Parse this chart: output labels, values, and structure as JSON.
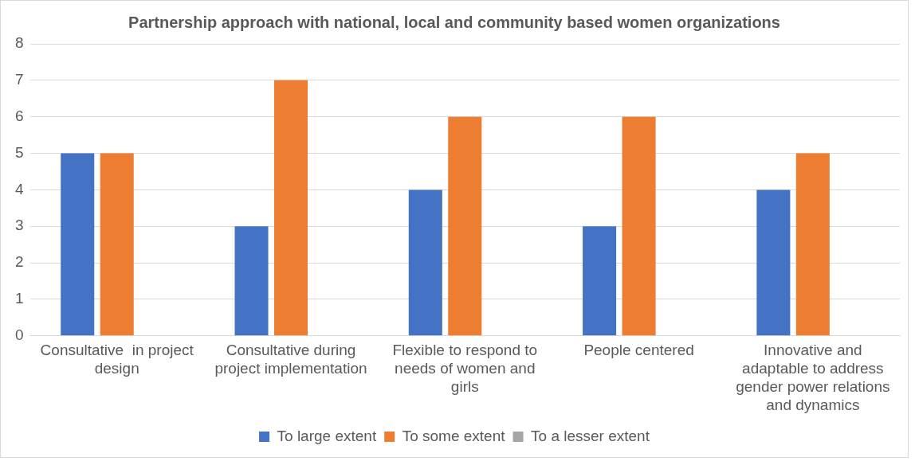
{
  "chart_data": {
    "type": "bar",
    "title": "Partnership approach with national, local and community based women organizations",
    "categories": [
      "Consultative  in project design",
      "Consultative during project implementation",
      "Flexible to respond to needs of women and girls",
      "People centered",
      "Innovative and adaptable to address gender power relations and dynamics"
    ],
    "series": [
      {
        "name": "To large extent",
        "color": "#4472c4",
        "values": [
          5,
          3,
          4,
          3,
          4
        ]
      },
      {
        "name": "To some extent",
        "color": "#ed7d31",
        "values": [
          5,
          7,
          6,
          6,
          5
        ]
      },
      {
        "name": "To a lesser extent",
        "color": "#a5a5a5",
        "values": [
          0,
          0,
          0,
          0,
          0
        ]
      }
    ],
    "ylim": [
      0,
      8
    ],
    "yticks": [
      0,
      1,
      2,
      3,
      4,
      5,
      6,
      7,
      8
    ],
    "grid": "y",
    "legend": "bottom"
  }
}
